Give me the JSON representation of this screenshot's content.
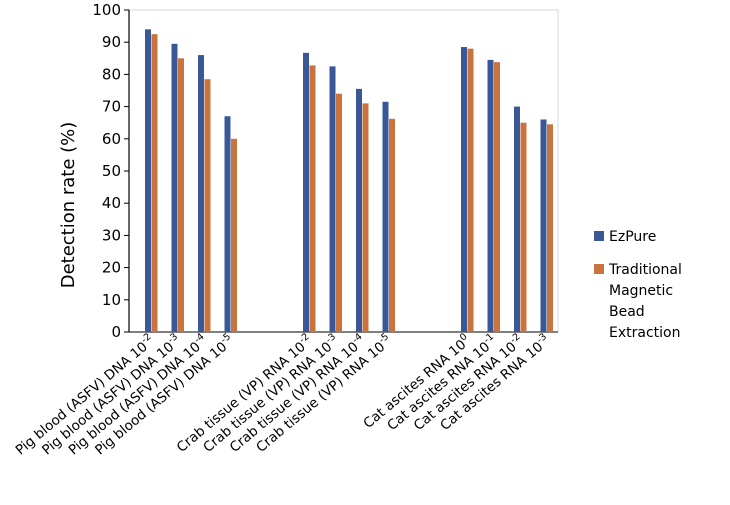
{
  "chart_data": {
    "type": "bar",
    "ylabel": "Detection rate  (%)",
    "ylim": [
      0,
      100
    ],
    "yticks": [
      "0",
      "10",
      "20",
      "30",
      "40",
      "50",
      "60",
      "70",
      "80",
      "90",
      "100"
    ],
    "grid": false,
    "legend_position": "right",
    "groups": [
      {
        "categories": [
          {
            "base": "Pig blood (ASFV) DNA 10",
            "exp": "-2"
          },
          {
            "base": "Pig blood (ASFV) DNA 10",
            "exp": "-3"
          },
          {
            "base": "Pig blood (ASFV) DNA 10",
            "exp": "-4"
          },
          {
            "base": "Pig blood (ASFV) DNA 10",
            "exp": "-5"
          }
        ]
      },
      {
        "categories": [
          {
            "base": "Crab tissue (VP) RNA 10",
            "exp": "-2"
          },
          {
            "base": "Crab tissue (VP) RNA 10",
            "exp": "-3"
          },
          {
            "base": "Crab tissue (VP) RNA 10",
            "exp": "-4"
          },
          {
            "base": "Crab tissue (VP) RNA 10",
            "exp": "-5"
          }
        ]
      },
      {
        "categories": [
          {
            "base": "Cat ascites RNA 10",
            "exp": "0"
          },
          {
            "base": "Cat ascites RNA 10",
            "exp": "-1"
          },
          {
            "base": "Cat ascites RNA 10",
            "exp": "-2"
          },
          {
            "base": "Cat ascites RNA 10",
            "exp": "-3"
          }
        ]
      }
    ],
    "series": [
      {
        "name": "EzPure",
        "color": "#3a5897",
        "values": [
          94,
          89.5,
          86,
          67,
          86.7,
          82.5,
          75.5,
          71.5,
          88.5,
          84.5,
          70,
          66
        ]
      },
      {
        "name_lines": [
          "Traditional",
          "Magnetic",
          "Bead",
          "Extraction"
        ],
        "color": "#c8743c",
        "values": [
          92.5,
          85,
          78.5,
          60,
          82.8,
          74,
          71,
          66.2,
          88,
          83.8,
          65,
          64.5
        ]
      }
    ]
  }
}
